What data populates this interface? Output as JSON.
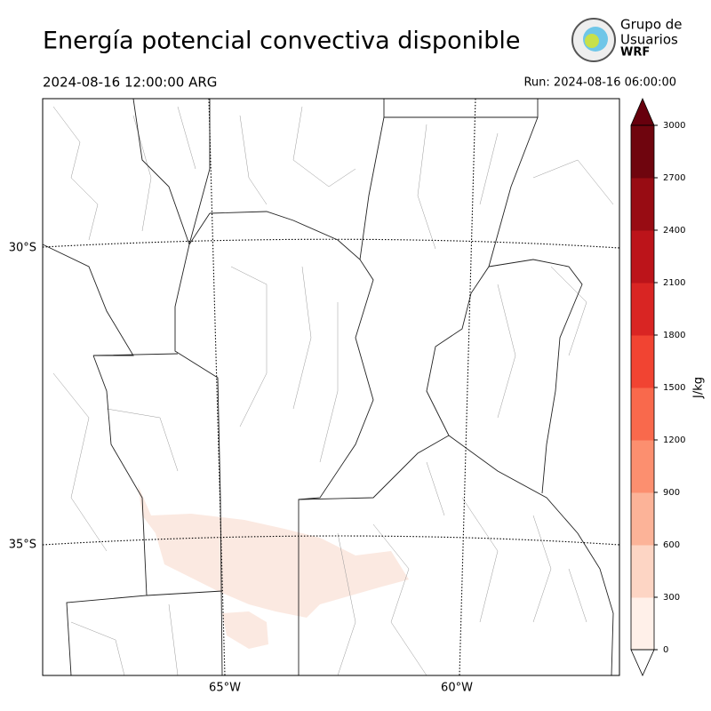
{
  "header": {
    "title": "Energía potencial convectiva disponible",
    "valid_time": "2024-08-16 12:00:00 ARG",
    "run": "Run: 2024-08-16 06:00:00"
  },
  "logo": {
    "line1": "Grupo de",
    "line2": "Usuarios",
    "line3": "WRF"
  },
  "map": {
    "lat_labels": [
      "30°S",
      "35°S"
    ],
    "lon_labels": [
      "65°W",
      "60°W"
    ]
  },
  "colorbar": {
    "label": "J/kg",
    "ticks": [
      0,
      300,
      600,
      900,
      1200,
      1500,
      1800,
      2100,
      2400,
      2700,
      3000
    ],
    "colors": [
      "#fff0e9",
      "#fdd5c4",
      "#fcb398",
      "#fc8f6f",
      "#f9694c",
      "#f14432",
      "#d92523",
      "#bc141a",
      "#980c13",
      "#6f050e"
    ],
    "over_color": "#67000d"
  }
}
